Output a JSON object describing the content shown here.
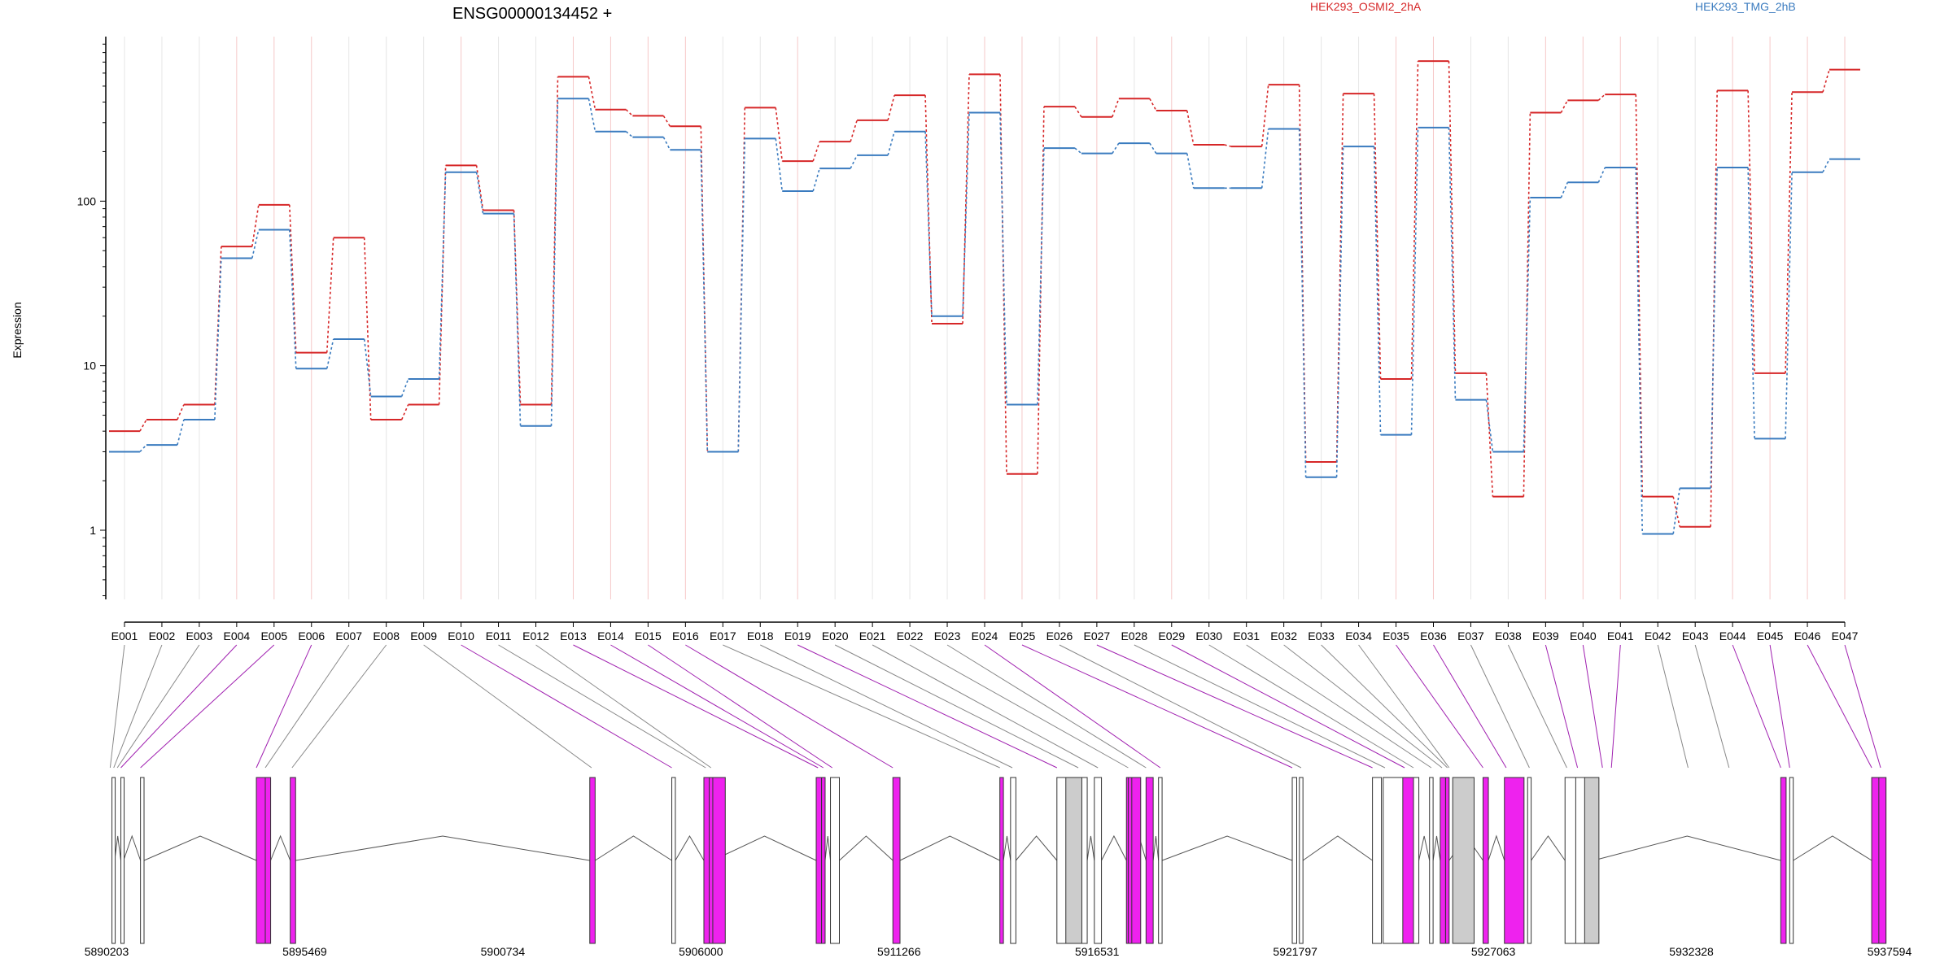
{
  "header": {
    "title": "ENSG00000134452 +",
    "legend": [
      {
        "name": "HEK293_OSMI2_2hA",
        "color": "#d62728"
      },
      {
        "name": "HEK293_TMG_2hB",
        "color": "#3a7bbf"
      }
    ]
  },
  "chart_data": {
    "type": "line",
    "title": "ENSG00000134452 +",
    "ylabel": "Expression",
    "yscale": "log",
    "ylim": [
      0.38,
      1000
    ],
    "yticks": [
      1,
      10,
      100
    ],
    "grid": false,
    "legend_position": "top",
    "categories": [
      "E001",
      "E002",
      "E003",
      "E004",
      "E005",
      "E006",
      "E007",
      "E008",
      "E009",
      "E010",
      "E011",
      "E012",
      "E013",
      "E014",
      "E015",
      "E016",
      "E017",
      "E018",
      "E019",
      "E020",
      "E021",
      "E022",
      "E023",
      "E024",
      "E025",
      "E026",
      "E027",
      "E028",
      "E029",
      "E030",
      "E031",
      "E032",
      "E033",
      "E034",
      "E035",
      "E036",
      "E037",
      "E038",
      "E039",
      "E040",
      "E041",
      "E042",
      "E043",
      "E044",
      "E045",
      "E046",
      "E047"
    ],
    "series": [
      {
        "name": "HEK293_OSMI2_2hA",
        "color": "#d62728",
        "values": [
          4.0,
          4.7,
          5.8,
          53,
          95,
          12,
          60,
          4.7,
          5.8,
          165,
          88,
          5.8,
          570,
          360,
          330,
          285,
          3.0,
          370,
          175,
          230,
          310,
          440,
          18,
          590,
          2.2,
          375,
          325,
          420,
          355,
          220,
          215,
          510,
          2.6,
          450,
          8.3,
          710,
          9.0,
          1.6,
          345,
          410,
          445,
          1.6,
          1.05,
          470,
          9.0,
          460,
          630
        ]
      },
      {
        "name": "HEK293_TMG_2hB",
        "color": "#3a7bbf",
        "values": [
          3.0,
          3.3,
          4.7,
          45,
          67,
          9.6,
          14.5,
          6.5,
          8.3,
          150,
          84,
          4.3,
          420,
          265,
          245,
          205,
          3.0,
          240,
          115,
          158,
          190,
          265,
          20,
          345,
          5.8,
          210,
          195,
          225,
          195,
          120,
          120,
          275,
          2.1,
          215,
          3.8,
          280,
          6.2,
          3.0,
          105,
          130,
          160,
          0.95,
          1.8,
          160,
          3.6,
          150,
          180
        ]
      }
    ],
    "gene_model": {
      "coordinate_labels": [
        "5890203",
        "5895469",
        "5900734",
        "5906000",
        "5911266",
        "5916531",
        "5921797",
        "5927063",
        "5932328",
        "5937594"
      ],
      "exon_fill_highlight": "#ee22ee",
      "exon_fill_default": "#cccccc",
      "highlighted_exons": [
        "E004",
        "E005",
        "E006",
        "E010",
        "E013",
        "E014",
        "E015",
        "E016",
        "E019",
        "E024",
        "E025",
        "E027",
        "E029",
        "E035",
        "E036",
        "E039",
        "E040",
        "E041",
        "E044",
        "E045",
        "E046",
        "E047"
      ]
    }
  }
}
